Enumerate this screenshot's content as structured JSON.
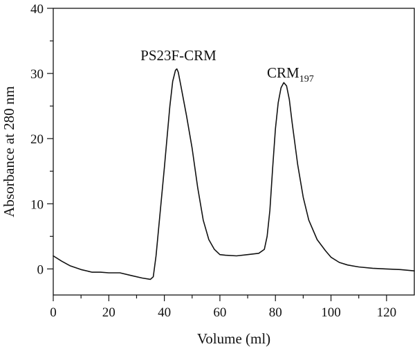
{
  "chart_data": {
    "type": "line",
    "title": "",
    "xlabel": "Volume (ml)",
    "ylabel": "Absorbance at 280 nm",
    "xlim": [
      0,
      130
    ],
    "ylim": [
      -4,
      40
    ],
    "xticks": [
      0,
      20,
      40,
      60,
      80,
      100,
      120
    ],
    "yticks": [
      0,
      10,
      20,
      30,
      40
    ],
    "grid": false,
    "line_color": "#111111",
    "annotations": [
      {
        "text": "PS23F-CRM",
        "x": 44,
        "y": 31.5
      },
      {
        "text": "CRM",
        "subscript": "197",
        "x": 84,
        "y": 29.5
      }
    ],
    "series": [
      {
        "x": [
          0,
          3,
          6,
          10,
          14,
          17,
          20,
          24,
          28,
          32,
          35,
          36,
          37,
          38,
          40,
          42,
          43,
          44,
          44.5,
          45,
          46,
          48,
          50,
          52,
          54,
          56,
          58,
          60,
          62,
          66,
          70,
          74,
          76,
          77,
          78,
          79,
          80,
          81,
          82,
          83,
          84,
          85,
          86,
          88,
          90,
          92,
          95,
          98,
          100,
          103,
          106,
          110,
          115,
          120,
          125,
          130
        ],
        "y": [
          2.0,
          1.2,
          0.5,
          -0.1,
          -0.5,
          -0.5,
          -0.6,
          -0.6,
          -1.0,
          -1.4,
          -1.6,
          -1.2,
          2.0,
          6.5,
          15.5,
          25.0,
          28.8,
          30.5,
          30.7,
          30.2,
          28.0,
          23.5,
          18.5,
          12.5,
          7.5,
          4.5,
          3.0,
          2.2,
          2.1,
          2.0,
          2.2,
          2.4,
          3.0,
          5.0,
          9.0,
          15.5,
          21.5,
          25.5,
          27.8,
          28.6,
          28.1,
          26.0,
          22.5,
          16.0,
          11.0,
          7.5,
          4.5,
          2.8,
          1.8,
          1.0,
          0.6,
          0.3,
          0.1,
          0.0,
          -0.1,
          -0.3
        ]
      }
    ]
  }
}
